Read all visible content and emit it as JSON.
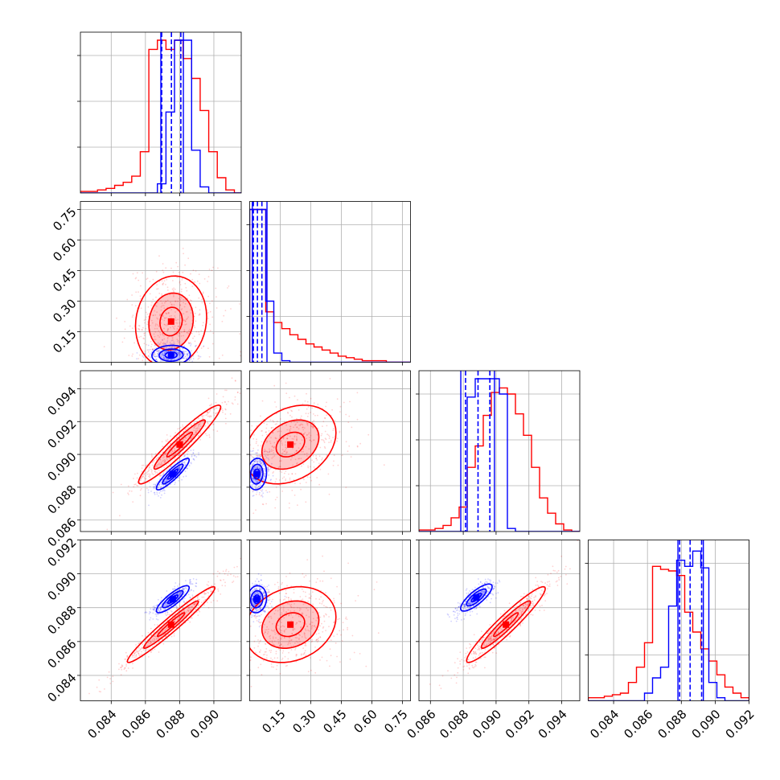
{
  "chart_data": {
    "type": "corner",
    "title": "",
    "grid": true,
    "legend": null,
    "series": [
      {
        "color": "#0000ff"
      },
      {
        "color": "#ff0000"
      }
    ],
    "parameters": [
      {
        "axis_range": [
          0.0822,
          0.0916
        ],
        "tick_labels": [
          "0.084",
          "0.086",
          "0.088",
          "0.090"
        ],
        "tick_values": [
          0.084,
          0.086,
          0.088,
          0.09
        ]
      },
      {
        "axis_range": [
          0.0,
          0.79
        ],
        "tick_labels": [
          "0.15",
          "0.30",
          "0.45",
          "0.60",
          "0.75"
        ],
        "tick_values": [
          0.15,
          0.3,
          0.45,
          0.6,
          0.75
        ]
      },
      {
        "axis_range": [
          0.0853,
          0.0951
        ],
        "tick_labels": [
          "0.086",
          "0.088",
          "0.090",
          "0.092",
          "0.094"
        ],
        "tick_values": [
          0.086,
          0.088,
          0.09,
          0.092,
          0.094
        ]
      },
      {
        "axis_range": [
          0.0825,
          0.092
        ],
        "tick_labels": [
          "0.084",
          "0.086",
          "0.088",
          "0.090",
          "0.092"
        ],
        "tick_values": [
          0.084,
          0.086,
          0.088,
          0.09,
          0.092
        ]
      }
    ],
    "diagonal_histograms": [
      {
        "param": 0,
        "bins": [
          0.0822,
          0.0922
        ],
        "blue_counts": [
          0,
          0,
          0,
          0,
          0,
          0,
          0,
          0,
          0,
          0.06,
          0.53,
          1.0,
          1.0,
          0.28,
          0.04,
          0,
          0,
          0,
          0,
          0
        ],
        "red_counts": [
          0.01,
          0.01,
          0.02,
          0.03,
          0.05,
          0.07,
          0.11,
          0.27,
          0.94,
          1.0,
          0.94,
          1.0,
          0.88,
          0.75,
          0.54,
          0.27,
          0.1,
          0.02,
          0,
          0
        ],
        "blue_quantiles": [
          0.08695,
          0.08752,
          0.08807
        ],
        "blue_bounds": [
          0.0869,
          0.08822
        ]
      },
      {
        "param": 1,
        "bins": [
          0.0,
          0.79
        ],
        "blue_counts": [
          1.0,
          1.0,
          0.4,
          0.06,
          0.01,
          0,
          0,
          0,
          0,
          0,
          0,
          0,
          0,
          0,
          0,
          0,
          0,
          0,
          0,
          0
        ],
        "red_counts": [
          1.0,
          1.0,
          0.33,
          0.26,
          0.22,
          0.18,
          0.15,
          0.12,
          0.1,
          0.08,
          0.06,
          0.04,
          0.03,
          0.02,
          0.01,
          0.01,
          0.01,
          0.0,
          0.0,
          0.0
        ],
        "blue_quantiles": [
          0.018,
          0.038,
          0.06
        ],
        "blue_bounds": [
          0.013,
          0.085
        ]
      },
      {
        "param": 2,
        "bins": [
          0.0853,
          0.0951
        ],
        "blue_counts": [
          0,
          0,
          0,
          0,
          0,
          0,
          0.88,
          1.0,
          1.0,
          1.0,
          0.9,
          0.02,
          0,
          0,
          0,
          0,
          0,
          0,
          0,
          0
        ],
        "red_counts": [
          0.01,
          0.01,
          0.02,
          0.04,
          0.09,
          0.16,
          0.42,
          0.56,
          0.76,
          0.91,
          0.94,
          0.9,
          0.77,
          0.63,
          0.42,
          0.22,
          0.12,
          0.05,
          0.01,
          0
        ],
        "blue_quantiles": [
          0.08814,
          0.0889,
          0.08962
        ],
        "blue_bounds": [
          0.08785,
          0.0899
        ]
      },
      {
        "param": 3,
        "bins": [
          0.0825,
          0.092
        ],
        "blue_counts": [
          0,
          0,
          0,
          0,
          0,
          0,
          0,
          0.05,
          0.15,
          0.22,
          0.62,
          0.92,
          0.88,
          0.98,
          0.87,
          0.12,
          0.02,
          0,
          0,
          0
        ],
        "red_counts": [
          0.02,
          0.02,
          0.03,
          0.04,
          0.05,
          0.12,
          0.22,
          0.38,
          0.88,
          0.86,
          0.85,
          0.82,
          0.58,
          0.45,
          0.34,
          0.26,
          0.17,
          0.09,
          0.05,
          0.02
        ],
        "blue_quantiles": [
          0.0879,
          0.08852,
          0.0892
        ],
        "blue_bounds": [
          0.0878,
          0.0893
        ]
      }
    ],
    "pairwise": [
      {
        "x_param": 0,
        "y_param": 1,
        "blue": {
          "center": [
            0.0875,
            0.035
          ],
          "sigma": [
            0.0007,
            0.03
          ],
          "rho": 0.05
        },
        "red": {
          "center": [
            0.0875,
            0.2
          ],
          "sigma": [
            0.0013,
            0.14
          ],
          "rho": 0.1
        }
      },
      {
        "x_param": 0,
        "y_param": 2,
        "blue": {
          "center": [
            0.0876,
            0.0888
          ],
          "sigma": [
            0.0006,
            0.0006
          ],
          "rho": 0.9
        },
        "red": {
          "center": [
            0.088,
            0.0906
          ],
          "sigma": [
            0.0015,
            0.0015
          ],
          "rho": 0.95
        }
      },
      {
        "x_param": 1,
        "y_param": 2,
        "blue": {
          "center": [
            0.035,
            0.0888
          ],
          "sigma": [
            0.03,
            0.0006
          ],
          "rho": 0.1
        },
        "red": {
          "center": [
            0.2,
            0.0906
          ],
          "sigma": [
            0.14,
            0.0015
          ],
          "rho": 0.3
        }
      },
      {
        "x_param": 0,
        "y_param": 3,
        "blue": {
          "center": [
            0.0876,
            0.0885
          ],
          "sigma": [
            0.0006,
            0.0005
          ],
          "rho": 0.85
        },
        "red": {
          "center": [
            0.0875,
            0.087
          ],
          "sigma": [
            0.0016,
            0.0014
          ],
          "rho": 0.97
        }
      },
      {
        "x_param": 1,
        "y_param": 3,
        "blue": {
          "center": [
            0.035,
            0.0885
          ],
          "sigma": [
            0.03,
            0.0005
          ],
          "rho": 0.1
        },
        "red": {
          "center": [
            0.2,
            0.087
          ],
          "sigma": [
            0.14,
            0.0014
          ],
          "rho": 0.2
        }
      },
      {
        "x_param": 2,
        "y_param": 3,
        "blue": {
          "center": [
            0.0888,
            0.0886
          ],
          "sigma": [
            0.0006,
            0.0005
          ],
          "rho": 0.8
        },
        "red": {
          "center": [
            0.0906,
            0.087
          ],
          "sigma": [
            0.0015,
            0.0014
          ],
          "rho": 0.95
        }
      }
    ]
  }
}
